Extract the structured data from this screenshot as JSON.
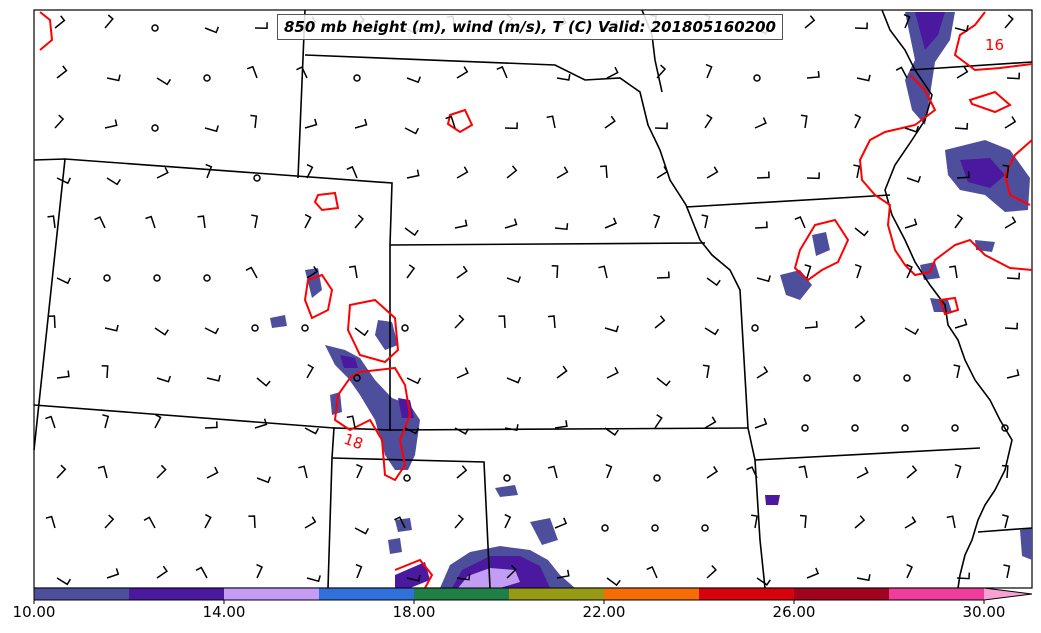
{
  "title": "850 mb height (m), wind (m/s), T (C) Valid: 201805160200",
  "contour_labels": [
    "16",
    "18"
  ],
  "colorbar": {
    "ticks": [
      "10.00",
      "14.00",
      "18.00",
      "22.00",
      "26.00",
      "30.00"
    ],
    "colors": [
      "#4e4f9c",
      "#4b18a0",
      "#c39cf4",
      "#3170da",
      "#207f45",
      "#979a14",
      "#f56d06",
      "#d7030c",
      "#a1041c",
      "#ee3d9b",
      "#f7a2d2"
    ]
  },
  "colors": {
    "temperature_contour": "#ff0000",
    "boundaries": "#000000",
    "wind_barb": "#000000"
  }
}
